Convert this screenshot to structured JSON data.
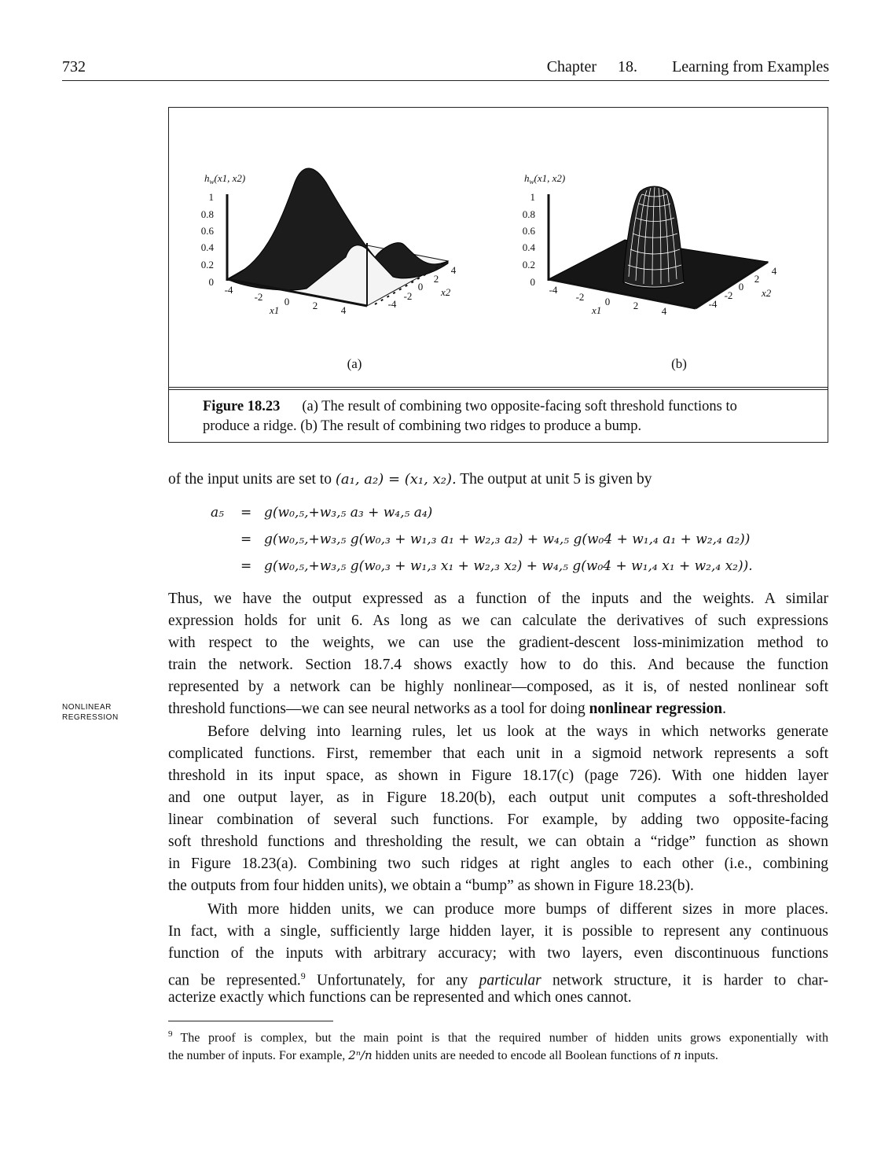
{
  "header": {
    "page_number": "732",
    "chapter_label": "Chapter",
    "chapter_number": "18.",
    "chapter_title": "Learning from Examples"
  },
  "figure": {
    "panels": [
      {
        "label": "(a)",
        "z_label": "h",
        "z_sub": "w",
        "z_args": "(x1, x2)",
        "z_ticks": [
          "1",
          "0.8",
          "0.6",
          "0.4",
          "0.2",
          "0"
        ],
        "x1_ticks": [
          "-4",
          "-2",
          "0",
          "2",
          "4"
        ],
        "x2_ticks": [
          "-4",
          "-2",
          "0",
          "2",
          "4"
        ],
        "x1_label": "x1",
        "x2_label": "x2",
        "surface": "ridge"
      },
      {
        "label": "(b)",
        "z_label": "h",
        "z_sub": "w",
        "z_args": "(x1, x2)",
        "z_ticks": [
          "1",
          "0.8",
          "0.6",
          "0.4",
          "0.2",
          "0"
        ],
        "x1_ticks": [
          "-4",
          "-2",
          "0",
          "2",
          "4"
        ],
        "x2_ticks": [
          "-4",
          "-2",
          "0",
          "2",
          "4"
        ],
        "x1_label": "x1",
        "x2_label": "x2",
        "surface": "bump"
      }
    ],
    "caption_label": "Figure 18.23",
    "caption_line1": "(a) The result of combining two opposite-facing soft threshold functions to",
    "caption_line2": "produce a ridge. (b) The result of combining two ridges to produce a bump."
  },
  "intro_text": "of the input units are set to",
  "intro_math": "(a₁, a₂) = (x₁, x₂).",
  "intro_tail": "The output at unit 5 is given by",
  "equations": {
    "lhs": "a₅",
    "op": "=",
    "line1": "g(w₀,₅,+w₃,₅ a₃ + w₄,₅ a₄)",
    "line2": "g(w₀,₅,+w₃,₅ g(w₀,₃ + w₁,₃ a₁ + w₂,₃ a₂) + w₄,₅ g(w₀4 + w₁,₄ a₁ + w₂,₄ a₂))",
    "line3": "g(w₀,₅,+w₃,₅ g(w₀,₃ + w₁,₃ x₁ + w₂,₃ x₂) + w₄,₅ g(w₀4 + w₁,₄ x₁ + w₂,₄ x₂))."
  },
  "margin_note": [
    "NONLINEAR",
    "REGRESSION"
  ],
  "paragraph1": {
    "l1": "Thus, we have the output expressed as a function of the inputs and the weights. A similar",
    "l2": "expression holds for unit 6. As long as we can calculate the derivatives of such expressions",
    "l3": "with respect to the weights, we can use the gradient-descent loss-minimization method to",
    "l4": "train the network. Section 18.7.4 shows exactly how to do this. And because the function",
    "l5": "represented by a network can be highly nonlinear—composed, as it is, of nested nonlinear soft",
    "l6_pre": "threshold functions—we can see neural networks as a tool for doing",
    "l6_bold": "nonlinear regression",
    "l6_post": "."
  },
  "paragraph2": {
    "l1": "Before delving into learning rules, let us look at the ways in which networks generate",
    "l2": "complicated functions. First, remember that each unit in a sigmoid network represents a soft",
    "l3": "threshold in its input space, as shown in Figure 18.17(c) (page 726). With one hidden layer",
    "l4": "and one output layer, as in Figure 18.20(b), each output unit computes a soft-thresholded",
    "l5": "linear combination of several such functions. For example, by adding two opposite-facing",
    "l6": "soft threshold functions and thresholding the result, we can obtain a “ridge” function as shown",
    "l7": "in Figure 18.23(a). Combining two such ridges at right angles to each other (i.e., combining",
    "l8": "the outputs from four hidden units), we obtain a “bump” as shown in Figure 18.23(b)."
  },
  "paragraph3": {
    "l1": "With more hidden units, we can produce more bumps of different sizes in more places.",
    "l2": "In fact, with a single, sufficiently large hidden layer, it is possible to represent any continuous",
    "l3": "function of the inputs with arbitrary accuracy; with two layers, even discontinuous functions",
    "l4_pre": "can be represented.",
    "l4_fn": "9",
    "l4_mid": " Unfortunately, for any ",
    "l4_ital": "particular",
    "l4_post": " network structure, it is harder to char-",
    "l5": "acterize exactly which functions can be represented and which ones cannot."
  },
  "footnote": {
    "mark": "9",
    "l1": "The proof is complex, but the main point is that the required number of hidden units grows exponentially with",
    "l2_pre": "the number of inputs. For example,",
    "l2_math": "2ⁿ/n",
    "l2_mid": "hidden units are needed to encode all Boolean functions of",
    "l2_math2": "n",
    "l2_post": "inputs."
  }
}
